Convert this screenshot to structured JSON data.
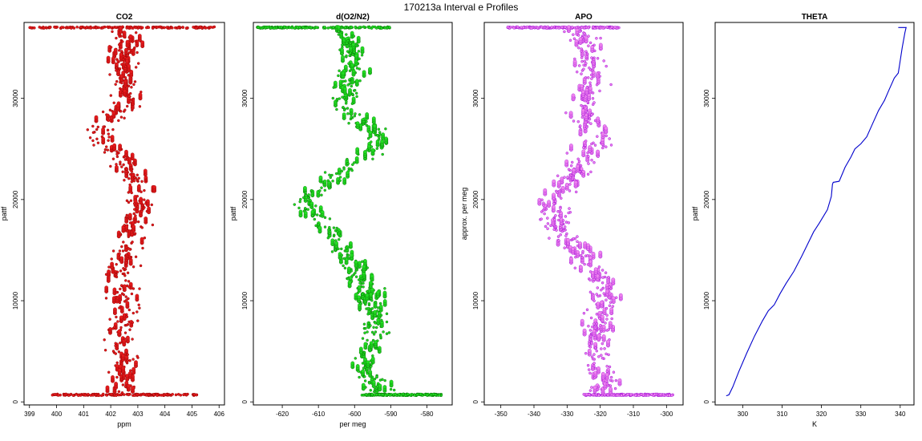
{
  "figure_title": "170213a   Interval e Profiles",
  "chart_data": [
    {
      "type": "scatter",
      "title": "CO2",
      "xlabel": "ppm",
      "ylabel": "pattf",
      "xlim": [
        398.8,
        406.2
      ],
      "ylim": [
        -300,
        37500
      ],
      "xticks": [
        399,
        400,
        401,
        402,
        403,
        404,
        405,
        406
      ],
      "yticks": [
        0,
        10000,
        20000,
        30000
      ],
      "color": "#e41a1c",
      "edge": "#8b0000",
      "profile": [
        [
          700,
          402.4
        ],
        [
          3000,
          402.6
        ],
        [
          6000,
          402.2
        ],
        [
          9000,
          402.5
        ],
        [
          12000,
          402.3
        ],
        [
          15000,
          402.6
        ],
        [
          18000,
          402.9
        ],
        [
          20000,
          403.2
        ],
        [
          22000,
          402.9
        ],
        [
          24000,
          402.5
        ],
        [
          26000,
          401.4
        ],
        [
          28000,
          402.1
        ],
        [
          30000,
          402.7
        ],
        [
          33000,
          402.5
        ],
        [
          36000,
          402.6
        ],
        [
          37000,
          402.5
        ]
      ],
      "spread": 0.45,
      "dense_bands": [
        {
          "y": 700,
          "x_min": 399.8,
          "x_max": 405.2
        },
        {
          "y": 37000,
          "x_min": 399.0,
          "x_max": 405.9
        }
      ]
    },
    {
      "type": "scatter",
      "title": "d(O2/N2)",
      "xlabel": "per meg",
      "ylabel": "pattf",
      "xlim": [
        -628,
        -573
      ],
      "ylim": [
        -300,
        37500
      ],
      "xticks": [
        -620,
        -610,
        -600,
        -590,
        -580
      ],
      "yticks": [
        0,
        10000,
        20000,
        30000
      ],
      "color": "#22dd22",
      "edge": "#006400",
      "profile": [
        [
          700,
          -592
        ],
        [
          3000,
          -597
        ],
        [
          6000,
          -595
        ],
        [
          9000,
          -594
        ],
        [
          12000,
          -598
        ],
        [
          15000,
          -603
        ],
        [
          18000,
          -610
        ],
        [
          20000,
          -614
        ],
        [
          22000,
          -606
        ],
        [
          24000,
          -598
        ],
        [
          26000,
          -592
        ],
        [
          28000,
          -600
        ],
        [
          30000,
          -603
        ],
        [
          33000,
          -600
        ],
        [
          36000,
          -602
        ],
        [
          37000,
          -605
        ]
      ],
      "spread": 3.2,
      "dense_bands": [
        {
          "y": 700,
          "x_min": -598,
          "x_max": -576
        },
        {
          "y": 37000,
          "x_min": -627,
          "x_max": -590
        }
      ]
    },
    {
      "type": "scatter",
      "title": "APO",
      "xlabel": "",
      "ylabel": "approx. per meg",
      "xlim": [
        -355,
        -295
      ],
      "ylim": [
        -300,
        37500
      ],
      "xticks": [
        -350,
        -340,
        -330,
        -320,
        -310,
        -300
      ],
      "yticks": [
        0,
        10000,
        20000,
        30000
      ],
      "color": "#ee82ee",
      "edge": "#9400d3",
      "profile": [
        [
          700,
          -318
        ],
        [
          3000,
          -320
        ],
        [
          6000,
          -322
        ],
        [
          9000,
          -319
        ],
        [
          12000,
          -320
        ],
        [
          15000,
          -327
        ],
        [
          18000,
          -335
        ],
        [
          20000,
          -335
        ],
        [
          22000,
          -328
        ],
        [
          24000,
          -325
        ],
        [
          26000,
          -321
        ],
        [
          28000,
          -325
        ],
        [
          30000,
          -324
        ],
        [
          33000,
          -323
        ],
        [
          36000,
          -324
        ],
        [
          37000,
          -330
        ]
      ],
      "spread": 4.0,
      "dense_bands": [
        {
          "y": 700,
          "x_min": -325,
          "x_max": -298
        },
        {
          "y": 37000,
          "x_min": -348,
          "x_max": -314
        }
      ]
    },
    {
      "type": "line",
      "title": "THETA",
      "xlabel": "K",
      "ylabel": "pattf",
      "xlim": [
        293,
        343.5
      ],
      "ylim": [
        -300,
        37500
      ],
      "xticks": [
        300,
        310,
        320,
        330,
        340
      ],
      "yticks": [
        0,
        10000,
        20000,
        30000
      ],
      "color": "#0000cc",
      "points": [
        [
          295.8,
          600
        ],
        [
          296.5,
          700
        ],
        [
          297.5,
          1500
        ],
        [
          299,
          3000
        ],
        [
          301,
          4800
        ],
        [
          303,
          6500
        ],
        [
          305,
          8000
        ],
        [
          306.5,
          9000
        ],
        [
          308,
          9600
        ],
        [
          309.5,
          10700
        ],
        [
          311,
          11700
        ],
        [
          313,
          12900
        ],
        [
          315,
          14400
        ],
        [
          316.5,
          15600
        ],
        [
          318,
          16800
        ],
        [
          319.5,
          17700
        ],
        [
          321.5,
          19000
        ],
        [
          322.5,
          20300
        ],
        [
          322.8,
          21500
        ],
        [
          323,
          21700
        ],
        [
          324.5,
          21800
        ],
        [
          326,
          23200
        ],
        [
          327.5,
          24200
        ],
        [
          328.5,
          25000
        ],
        [
          330,
          25500
        ],
        [
          331.5,
          26200
        ],
        [
          333,
          27500
        ],
        [
          334.5,
          28800
        ],
        [
          336,
          29800
        ],
        [
          337,
          30700
        ],
        [
          338.5,
          32000
        ],
        [
          339.5,
          32500
        ],
        [
          339.8,
          33200
        ],
        [
          340.5,
          35000
        ],
        [
          341.2,
          36500
        ],
        [
          341.5,
          37000
        ],
        [
          339.5,
          37000
        ]
      ]
    }
  ]
}
